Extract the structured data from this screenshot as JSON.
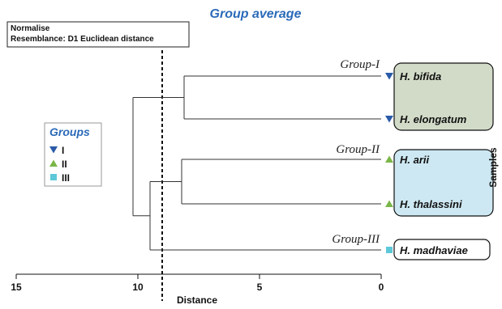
{
  "chart_data": {
    "type": "dendrogram",
    "title": "Group average",
    "note_lines": [
      "Normalise",
      "Resemblance: D1 Euclidean distance"
    ],
    "xlabel": "Distance",
    "ylabel": "Samples",
    "xlim": [
      15,
      0
    ],
    "x_ticks": [
      15,
      10,
      5,
      0
    ],
    "cutoff": 9.0,
    "leaves": [
      {
        "name": "H. bifida",
        "group": "I"
      },
      {
        "name": "H. elongatum",
        "group": "I"
      },
      {
        "name": "H. arii",
        "group": "II"
      },
      {
        "name": "H. thalassini",
        "group": "II"
      },
      {
        "name": "H. madhaviae",
        "group": "III"
      }
    ],
    "merges": [
      {
        "clusters": [
          "H. bifida",
          "H. elongatum"
        ],
        "distance": 8.1
      },
      {
        "clusters": [
          "H. arii",
          "H. thalassini"
        ],
        "distance": 8.2
      },
      {
        "clusters": [
          "Group-II",
          "H. madhaviae"
        ],
        "distance": 9.5
      },
      {
        "clusters": [
          "Group-I",
          "Group-II + H. madhaviae"
        ],
        "distance": 10.2
      }
    ],
    "group_labels": [
      "Group-I",
      "Group-II",
      "Group-III"
    ],
    "legend": {
      "title": "Groups",
      "items": [
        {
          "label": "I",
          "marker": "triangle-down",
          "color": "#2a5aa8"
        },
        {
          "label": "II",
          "marker": "triangle-up",
          "color": "#7ab648"
        },
        {
          "label": "III",
          "marker": "square",
          "color": "#5cc8d8"
        }
      ]
    },
    "box_colors": {
      "I": "#d2dbc8",
      "II": "#cde8f2",
      "III": "#ffffff"
    },
    "accent_color": "#2a6ab8"
  }
}
